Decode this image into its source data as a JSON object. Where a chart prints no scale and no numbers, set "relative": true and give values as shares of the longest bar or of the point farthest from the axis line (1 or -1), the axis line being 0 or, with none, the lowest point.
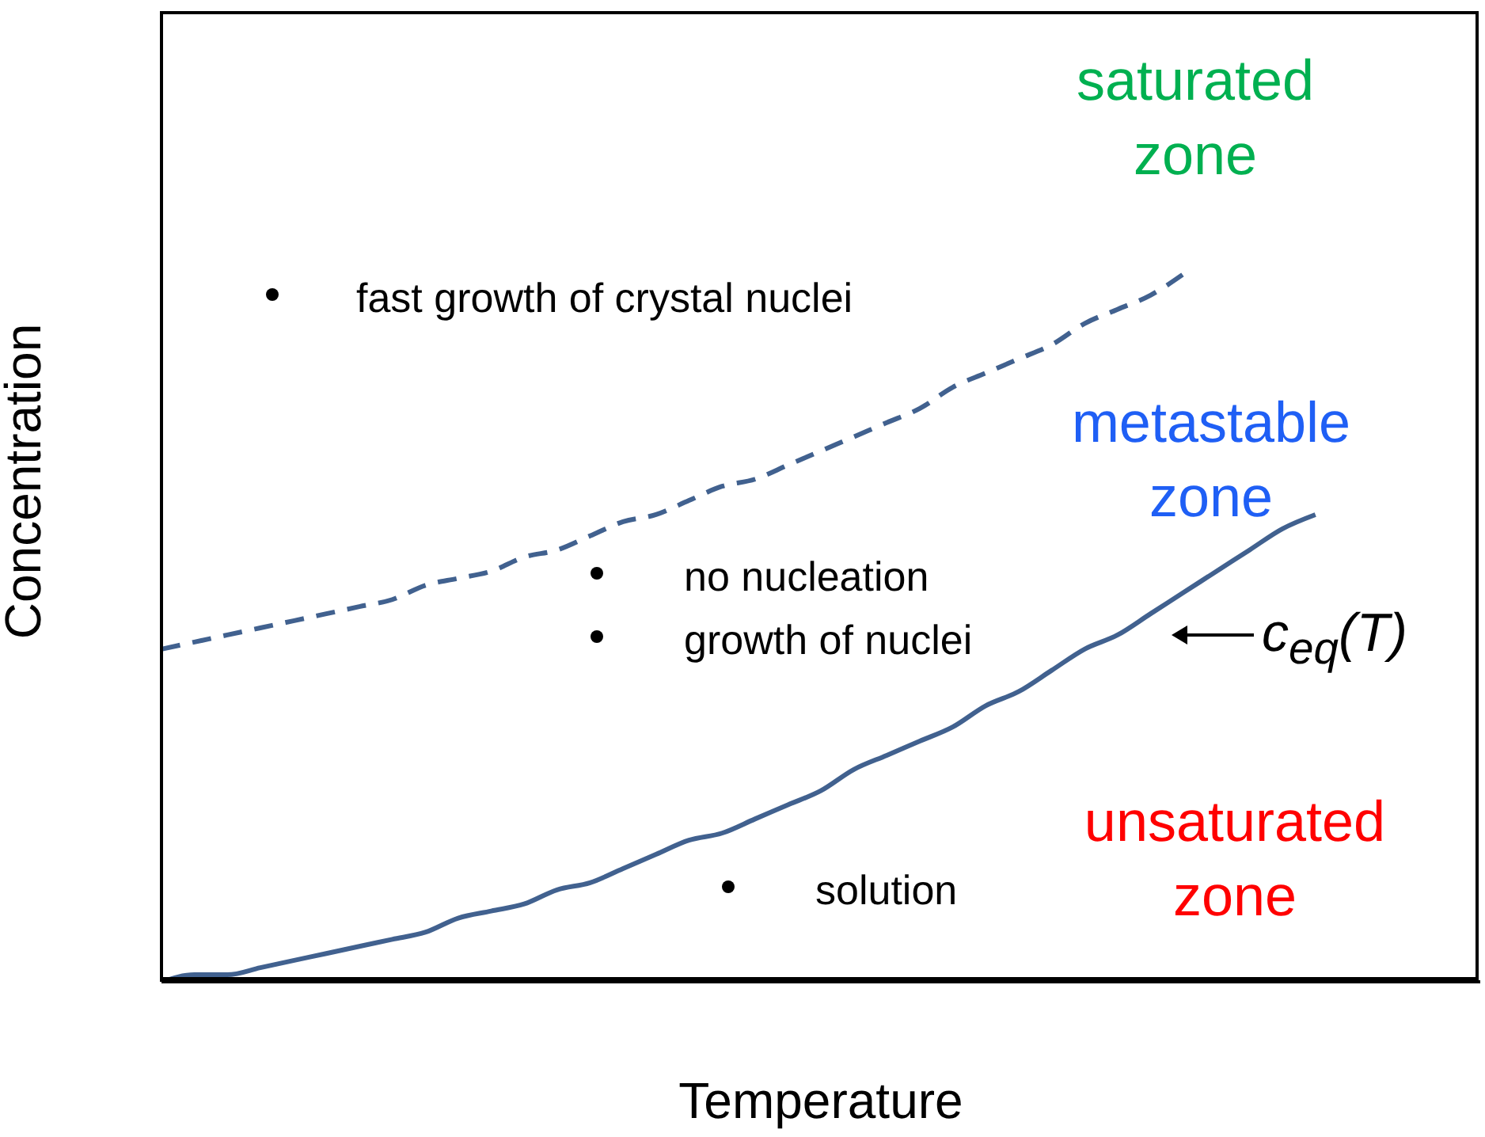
{
  "chart_data": {
    "type": "line",
    "relative": true,
    "xlabel": "Temperature",
    "ylabel": "Concentration",
    "marker": "none",
    "categories": [
      null,
      null,
      null,
      null,
      null,
      null,
      null,
      null,
      null,
      null,
      null,
      null,
      null,
      null,
      null,
      null,
      null,
      null,
      null,
      null,
      null,
      null,
      null,
      null,
      null,
      null,
      null,
      null,
      null,
      null,
      null,
      null,
      null,
      null,
      null,
      null,
      null,
      null,
      null,
      null,
      null
    ],
    "series": [
      {
        "color": "#41618f",
        "line_style": "solid",
        "values": [
          0,
          0.01,
          0.01,
          0.02,
          0.03,
          0.04,
          0.05,
          0.06,
          0.07,
          0.09,
          0.1,
          0.11,
          0.13,
          0.14,
          0.16,
          0.18,
          0.2,
          0.21,
          0.23,
          0.25,
          0.27,
          0.3,
          0.32,
          0.34,
          0.36,
          0.39,
          0.41,
          0.44,
          0.47,
          0.49,
          0.52,
          0.55,
          0.58,
          0.61,
          0.64,
          0.66,
          null,
          null,
          null,
          null,
          null
        ]
      },
      {
        "color": "#41618f",
        "line_style": "dashed",
        "values": [
          0.47,
          0.48,
          0.49,
          0.5,
          0.51,
          0.52,
          0.53,
          0.54,
          0.56,
          0.57,
          0.58,
          0.6,
          0.61,
          0.63,
          0.65,
          0.66,
          0.68,
          0.7,
          0.71,
          0.73,
          0.75,
          0.77,
          0.79,
          0.81,
          0.84,
          0.86,
          0.88,
          0.9,
          0.93,
          0.95,
          0.97,
          1,
          null,
          null,
          null,
          null,
          null,
          null,
          null,
          null,
          null
        ]
      }
    ],
    "annotations": [
      "saturated zone",
      "fast growth of crystal nuclei",
      "metastable zone",
      "no nucleation",
      "growth of nuclei",
      "c$_{eq}$(T)",
      "unsaturated zone",
      "solution"
    ]
  }
}
